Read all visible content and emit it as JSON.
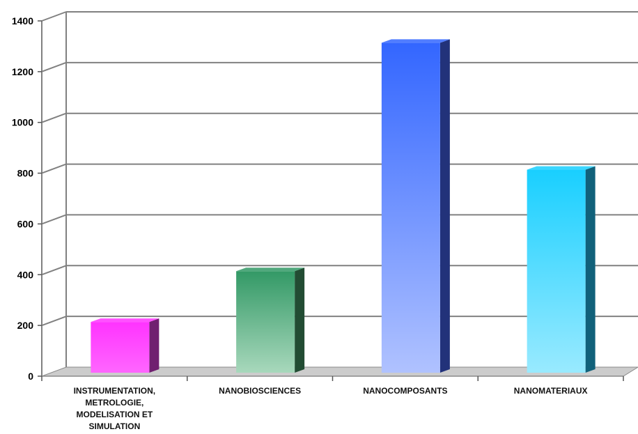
{
  "chart_data": {
    "type": "bar",
    "title": "",
    "xlabel": "",
    "ylabel": "",
    "categories": [
      "INSTRUMENTATION,\nMETROLOGIE,\nMODELISATION ET\nSIMULATION",
      "NANOBIOSCIENCES",
      "NANOCOMPOSANTS",
      "NANOMATERIAUX"
    ],
    "values": [
      200,
      400,
      1300,
      800
    ],
    "ylim": [
      0,
      1400
    ],
    "yticks": [
      "0",
      "200",
      "400",
      "600",
      "800",
      "1000",
      "1200",
      "1400"
    ],
    "grid": true,
    "style": "3d",
    "colors": {
      "bar_tops": [
        "#ff33ff",
        "#339966",
        "#3366ff",
        "#19cfff"
      ],
      "bar_bottoms": [
        "#ff66ff",
        "#a8d8bc",
        "#b0c2ff",
        "#99eaff"
      ],
      "bar_sides": [
        "#702070",
        "#224c33",
        "#22327a",
        "#11617a"
      ],
      "floor": "#cccccc",
      "wall": "#ffffff",
      "grid": "#808080"
    }
  }
}
